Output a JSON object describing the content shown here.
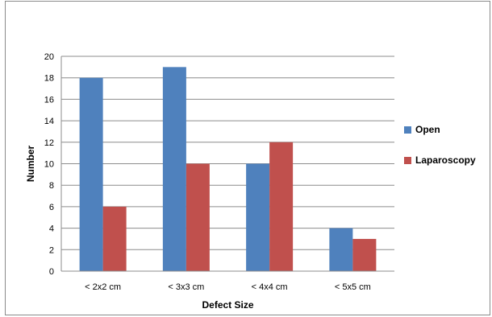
{
  "chart_data": {
    "type": "bar",
    "title": "",
    "xlabel": "Defect Size",
    "ylabel": "Number",
    "categories": [
      "< 2x2 cm",
      "< 3x3 cm",
      "< 4x4 cm",
      "< 5x5 cm"
    ],
    "series": [
      {
        "name": "Open",
        "values": [
          18,
          19,
          10,
          4
        ],
        "color": "#4f81bd"
      },
      {
        "name": "Laparoscopy",
        "values": [
          6,
          10,
          12,
          3
        ],
        "color": "#c0504d"
      }
    ],
    "ylim": [
      0,
      20
    ],
    "yticks": [
      "0",
      "2",
      "4",
      "6",
      "8",
      "10",
      "12",
      "14",
      "16",
      "18",
      "20"
    ],
    "grid": true,
    "legend_position": "right"
  }
}
